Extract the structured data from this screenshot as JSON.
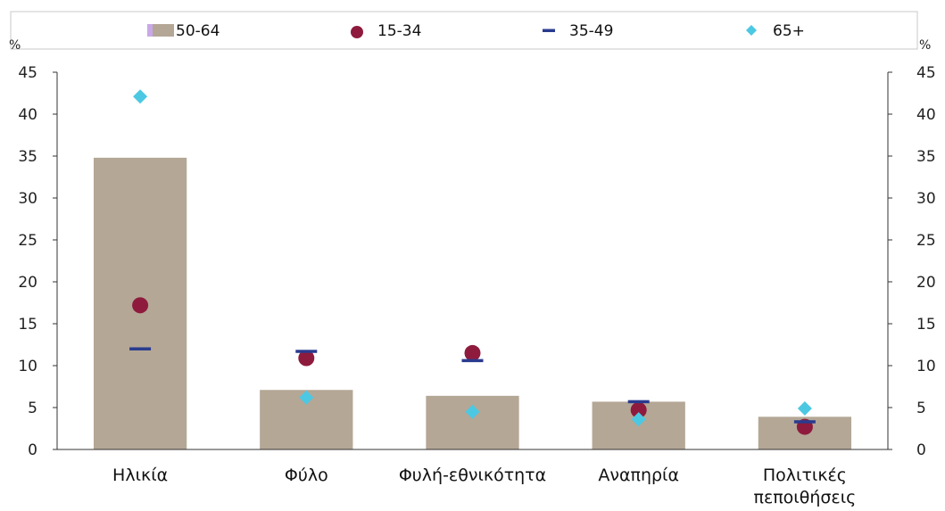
{
  "chart_data": {
    "type": "bar",
    "categories": [
      "Ηλικία",
      "Φύλο",
      "Φυλή-εθνικότητα",
      "Αναπηρία",
      "Πολιτικές πεποιθήσεις"
    ],
    "category_lines": [
      [
        "Ηλικία"
      ],
      [
        "Φύλο"
      ],
      [
        "Φυλή-εθνικότητα"
      ],
      [
        "Αναπηρία"
      ],
      [
        "Πολιτικές",
        "πεποιθήσεις"
      ]
    ],
    "series": [
      {
        "name": "50-64",
        "kind": "bar",
        "color": "#b4a796",
        "values": [
          34.8,
          7.1,
          6.4,
          5.7,
          3.9
        ]
      },
      {
        "name": "15-34",
        "kind": "circle",
        "color": "#8e1b3d",
        "values": [
          17.2,
          10.9,
          11.5,
          4.7,
          2.7
        ]
      },
      {
        "name": "35-49",
        "kind": "dash",
        "color": "#2a3b8f",
        "values": [
          12.0,
          11.7,
          10.6,
          5.7,
          3.3
        ]
      },
      {
        "name": "65+",
        "kind": "diamond",
        "color": "#4cc8e3",
        "values": [
          42.1,
          6.2,
          4.5,
          3.6,
          4.9
        ]
      }
    ],
    "ylabel": "%",
    "ylabel_right": "%",
    "ylim": [
      0,
      45
    ],
    "yticks": [
      0,
      5,
      10,
      15,
      20,
      25,
      30,
      35,
      40,
      45
    ],
    "grid": false,
    "legend_position": "top"
  }
}
